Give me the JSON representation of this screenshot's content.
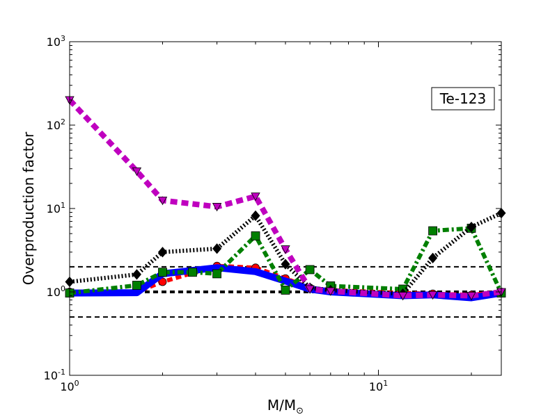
{
  "chart_data": {
    "type": "line",
    "title": "",
    "annotation": "Te-123",
    "xlabel": "M/M",
    "xlabel_subscript": "⊙",
    "ylabel": "Overproduction factor",
    "xscale": "log",
    "yscale": "log",
    "xlim": [
      1,
      25
    ],
    "ylim": [
      0.1,
      1000
    ],
    "x_ticks": [
      {
        "value": 1,
        "base": "10",
        "exp": "0"
      },
      {
        "value": 10,
        "base": "10",
        "exp": "1"
      }
    ],
    "y_ticks": [
      {
        "value": 0.1,
        "base": "10",
        "exp": "-1"
      },
      {
        "value": 1,
        "base": "10",
        "exp": "0"
      },
      {
        "value": 10,
        "base": "10",
        "exp": "1"
      },
      {
        "value": 100,
        "base": "10",
        "exp": "2"
      },
      {
        "value": 1000,
        "base": "10",
        "exp": "3"
      }
    ],
    "reference_lines": [
      0.5,
      1,
      2
    ],
    "series": [
      {
        "color": "#ff0000",
        "marker": "circle",
        "style": "dashed",
        "x": [
          1,
          1.65,
          2,
          3,
          4,
          5,
          6,
          7,
          12,
          15,
          20,
          25
        ],
        "y": [
          1.0,
          1.0,
          1.32,
          2.05,
          1.95,
          1.45,
          1.12,
          1.05,
          0.97,
          0.95,
          0.92,
          1.0
        ]
      },
      {
        "color": "#0000ff",
        "marker": "none",
        "style": "solid",
        "x": [
          1,
          1.65,
          2,
          3,
          4,
          5,
          6,
          7,
          12,
          15,
          20,
          25
        ],
        "y": [
          0.97,
          0.98,
          1.65,
          1.95,
          1.75,
          1.35,
          1.08,
          1.0,
          0.9,
          0.92,
          0.85,
          0.97
        ]
      },
      {
        "color": "#007f00",
        "marker": "square",
        "style": "dashdot",
        "x": [
          1,
          1.65,
          2,
          2.5,
          3,
          4,
          5,
          6,
          7,
          12,
          15,
          20,
          25
        ],
        "y": [
          0.97,
          1.2,
          1.72,
          1.72,
          1.65,
          4.7,
          1.05,
          1.85,
          1.18,
          1.08,
          5.4,
          5.8,
          0.97
        ]
      },
      {
        "color": "#000000",
        "marker": "diamond",
        "style": "dotted",
        "x": [
          1,
          1.65,
          2,
          3,
          4,
          5,
          6,
          7,
          12,
          15,
          20,
          25
        ],
        "y": [
          1.32,
          1.62,
          3.0,
          3.3,
          8.2,
          2.15,
          1.12,
          1.05,
          0.95,
          2.55,
          6.0,
          8.8
        ]
      },
      {
        "color": "#bf00bf",
        "marker": "triangle-down",
        "style": "dashed",
        "x": [
          1,
          1.65,
          2,
          3,
          4,
          5,
          6,
          7,
          12,
          15,
          20,
          25
        ],
        "y": [
          200,
          28,
          12.5,
          10.5,
          14,
          3.25,
          1.08,
          1.02,
          0.9,
          0.92,
          0.9,
          1.0
        ]
      }
    ]
  }
}
